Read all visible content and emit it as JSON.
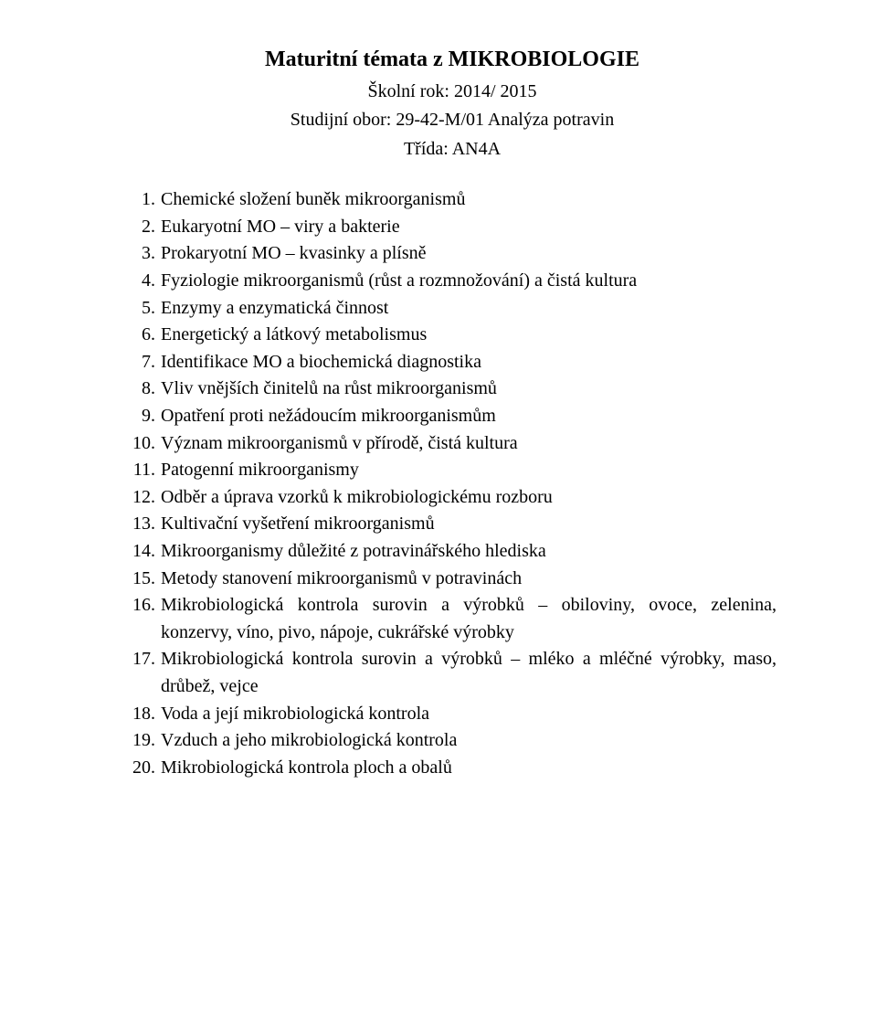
{
  "header": {
    "title": "Maturitní témata z MIKROBIOLOGIE",
    "line1": "Školní rok: 2014/ 2015",
    "line2": "Studijní obor: 29-42-M/01 Analýza potravin",
    "line3": "Třída: AN4A"
  },
  "items": [
    {
      "n": "1.",
      "text": "Chemické složení buněk mikroorganismů"
    },
    {
      "n": "2.",
      "text": "Eukaryotní MO – viry a bakterie"
    },
    {
      "n": "3.",
      "text": "Prokaryotní MO – kvasinky a plísně"
    },
    {
      "n": "4.",
      "text": "Fyziologie mikroorganismů (růst a rozmnožování) a čistá kultura"
    },
    {
      "n": "5.",
      "text": "Enzymy a enzymatická činnost"
    },
    {
      "n": "6.",
      "text": "Energetický a látkový metabolismus"
    },
    {
      "n": "7.",
      "text": "Identifikace MO a biochemická diagnostika"
    },
    {
      "n": "8.",
      "text": "Vliv vnějších činitelů na růst mikroorganismů"
    },
    {
      "n": "9.",
      "text": "Opatření proti nežádoucím mikroorganismům"
    },
    {
      "n": "10.",
      "text": "Význam mikroorganismů v přírodě, čistá kultura"
    },
    {
      "n": "11.",
      "text": "Patogenní mikroorganismy"
    },
    {
      "n": "12.",
      "text": "Odběr a úprava vzorků k mikrobiologickému rozboru"
    },
    {
      "n": "13.",
      "text": "Kultivační vyšetření mikroorganismů"
    },
    {
      "n": "14.",
      "text": "Mikroorganismy důležité z potravinářského hlediska"
    },
    {
      "n": "15.",
      "text": "Metody stanovení mikroorganismů v potravinách"
    },
    {
      "n": "16.",
      "text": "Mikrobiologická kontrola surovin a výrobků – obiloviny, ovoce, zelenina, konzervy, víno, pivo, nápoje, cukrářské výrobky"
    },
    {
      "n": "17.",
      "text": "Mikrobiologická kontrola surovin a výrobků – mléko a mléčné výrobky, maso, drůbež, vejce"
    },
    {
      "n": "18.",
      "text": "Voda a její mikrobiologická kontrola"
    },
    {
      "n": "19.",
      "text": "Vzduch a jeho mikrobiologická kontrola"
    },
    {
      "n": "20.",
      "text": "Mikrobiologická kontrola ploch a obalů"
    }
  ]
}
